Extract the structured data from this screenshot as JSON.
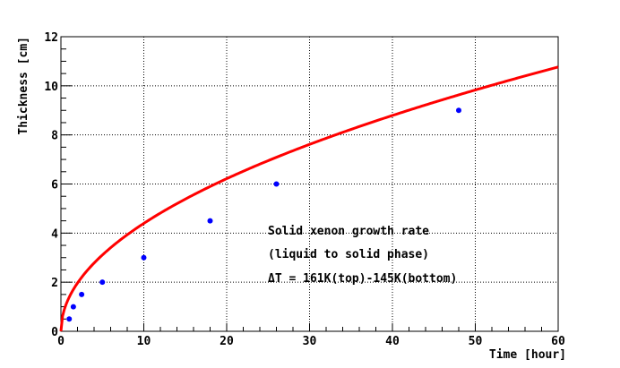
{
  "chart_data": {
    "type": "scatter",
    "xlabel": "Time [hour]",
    "ylabel": "Thickness [cm]",
    "xlim": [
      0,
      60
    ],
    "ylim": [
      0,
      12
    ],
    "xticks": [
      "0",
      "10",
      "20",
      "30",
      "40",
      "50",
      "60"
    ],
    "yticks": [
      "0",
      "2",
      "4",
      "6",
      "8",
      "10",
      "12"
    ],
    "grid": true,
    "series": [
      {
        "kind": "points",
        "color": "#0000ff",
        "x": [
          1,
          1.5,
          2.5,
          5,
          10,
          18,
          26,
          48
        ],
        "y": [
          0.5,
          1.0,
          1.5,
          2.0,
          3.0,
          4.5,
          6.0,
          9.0
        ]
      },
      {
        "kind": "curve",
        "color": "#ff0000",
        "function": "y = 1.39 * sqrt(x)",
        "coefficient": 1.39,
        "exponent": 0.5
      }
    ],
    "annotations": [
      "Solid xenon growth rate",
      "(liquid to solid phase)",
      "ΔT = 161K(top)-145K(bottom)"
    ]
  }
}
